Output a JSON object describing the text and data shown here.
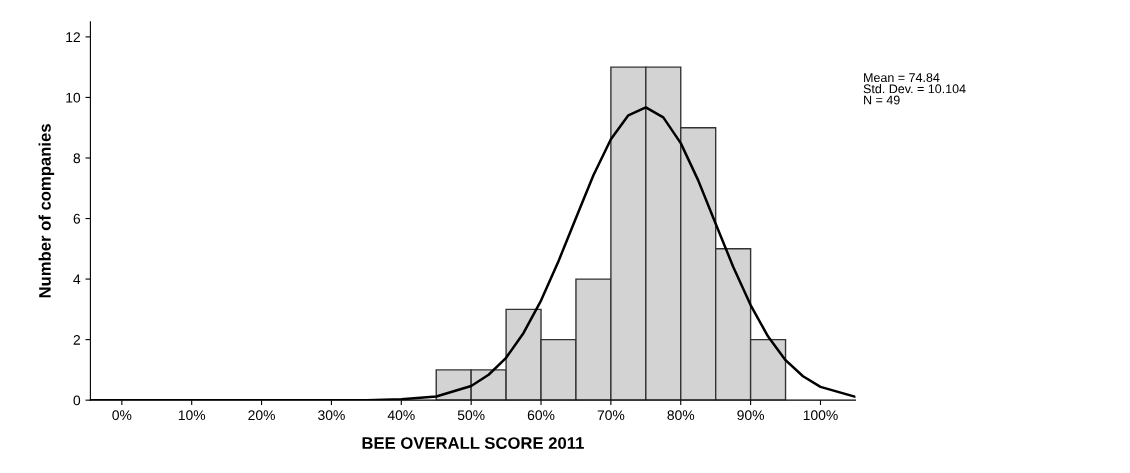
{
  "chart_data": {
    "type": "histogram",
    "xlabel": "BEE OVERALL SCORE 2011",
    "ylabel": "Number of companies",
    "bins": [
      45,
      50,
      55,
      60,
      65,
      70,
      75,
      80,
      85,
      90,
      95
    ],
    "values": [
      1,
      1,
      3,
      2,
      4,
      11,
      11,
      9,
      5,
      2
    ],
    "color": "#d3d3d3",
    "series": [
      {
        "type": "line",
        "color": "#000000",
        "x": [
          -4.5,
          20,
          35,
          40,
          45,
          50,
          52.5,
          55,
          57.5,
          60,
          62.5,
          65,
          67.5,
          70,
          72.5,
          75,
          77.5,
          80,
          82.5,
          85,
          87.5,
          90,
          92.5,
          95,
          97.5,
          100,
          105
        ],
        "values": [
          0,
          0,
          0,
          0.03,
          0.12,
          0.47,
          0.84,
          1.4,
          2.22,
          3.29,
          4.59,
          6.02,
          7.43,
          8.62,
          9.41,
          9.67,
          9.34,
          8.49,
          7.26,
          5.83,
          4.41,
          3.14,
          2.1,
          1.32,
          0.79,
          0.44,
          0.11
        ]
      }
    ],
    "xlim": [
      -4.5,
      105
    ],
    "xticks": [
      {
        "value": 0,
        "label": "0%"
      },
      {
        "value": 10,
        "label": "10%"
      },
      {
        "value": 20,
        "label": "20%"
      },
      {
        "value": 30,
        "label": "30%"
      },
      {
        "value": 40,
        "label": "40%"
      },
      {
        "value": 50,
        "label": "50%"
      },
      {
        "value": 60,
        "label": "60%"
      },
      {
        "value": 70,
        "label": "70%"
      },
      {
        "value": 80,
        "label": "80%"
      },
      {
        "value": 90,
        "label": "90%"
      },
      {
        "value": 100,
        "label": "100%"
      }
    ],
    "ylim": [
      0,
      12.5
    ],
    "yticks": [
      0,
      2,
      4,
      6,
      8,
      10,
      12
    ],
    "grid": false,
    "annotations": [
      "Mean = 74.84",
      "Std. Dev. = 10.104",
      "N = 49"
    ]
  }
}
